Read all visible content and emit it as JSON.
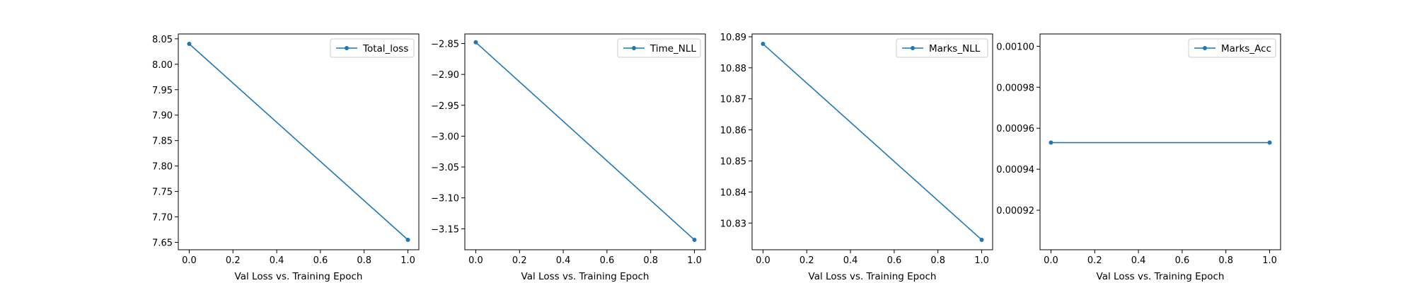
{
  "chart_data": [
    {
      "type": "line",
      "xlabel": "Val Loss vs. Training Epoch",
      "ylabel": "",
      "xlim": [
        -0.05,
        1.05
      ],
      "ylim": [
        7.6355,
        8.0595
      ],
      "xticks": [
        0.0,
        0.2,
        0.4,
        0.6,
        0.8,
        1.0
      ],
      "xtick_labels": [
        "0.0",
        "0.2",
        "0.4",
        "0.6",
        "0.8",
        "1.0"
      ],
      "yticks": [
        7.65,
        7.7,
        7.75,
        7.8,
        7.85,
        7.9,
        7.95,
        8.0,
        8.05
      ],
      "ytick_labels": [
        "7.65",
        "7.70",
        "7.75",
        "7.80",
        "7.85",
        "7.90",
        "7.95",
        "8.00",
        "8.05"
      ],
      "series": [
        {
          "name": "Total_loss",
          "x": [
            0,
            1
          ],
          "y": [
            8.04,
            7.655
          ],
          "color": "#1f77b4",
          "marker": "circle"
        }
      ],
      "legend": "upper right",
      "grid": false
    },
    {
      "type": "line",
      "xlabel": "Val Loss vs. Training Epoch",
      "ylabel": "",
      "xlim": [
        -0.05,
        1.05
      ],
      "ylim": [
        -3.184,
        -2.8345
      ],
      "xticks": [
        0.0,
        0.2,
        0.4,
        0.6,
        0.8,
        1.0
      ],
      "xtick_labels": [
        "0.0",
        "0.2",
        "0.4",
        "0.6",
        "0.8",
        "1.0"
      ],
      "yticks": [
        -3.15,
        -3.1,
        -3.05,
        -3.0,
        -2.95,
        -2.9,
        -2.85
      ],
      "ytick_labels": [
        "−3.15",
        "−3.10",
        "−3.05",
        "−3.00",
        "−2.95",
        "−2.90",
        "−2.85"
      ],
      "series": [
        {
          "name": "Time_NLL",
          "x": [
            0,
            1
          ],
          "y": [
            -2.848,
            -3.168
          ],
          "color": "#1f77b4",
          "marker": "circle"
        }
      ],
      "legend": "upper right",
      "grid": false
    },
    {
      "type": "line",
      "xlabel": "Val Loss vs. Training Epoch",
      "ylabel": "",
      "xlim": [
        -0.05,
        1.05
      ],
      "ylim": [
        10.8214,
        10.8909
      ],
      "xticks": [
        0.0,
        0.2,
        0.4,
        0.6,
        0.8,
        1.0
      ],
      "xtick_labels": [
        "0.0",
        "0.2",
        "0.4",
        "0.6",
        "0.8",
        "1.0"
      ],
      "yticks": [
        10.83,
        10.84,
        10.85,
        10.86,
        10.87,
        10.88,
        10.89
      ],
      "ytick_labels": [
        "10.83",
        "10.84",
        "10.85",
        "10.86",
        "10.87",
        "10.88",
        "10.89"
      ],
      "series": [
        {
          "name": "Marks_NLL",
          "x": [
            0,
            1
          ],
          "y": [
            10.8877,
            10.8246
          ],
          "color": "#1f77b4",
          "marker": "circle"
        }
      ],
      "legend": "upper right",
      "grid": false
    },
    {
      "type": "line",
      "xlabel": "Val Loss vs. Training Epoch",
      "ylabel": "",
      "xlim": [
        -0.05,
        1.05
      ],
      "ylim": [
        0.0009007,
        0.001006
      ],
      "xticks": [
        0.0,
        0.2,
        0.4,
        0.6,
        0.8,
        1.0
      ],
      "xtick_labels": [
        "0.0",
        "0.2",
        "0.4",
        "0.6",
        "0.8",
        "1.0"
      ],
      "yticks": [
        0.00092,
        0.00094,
        0.00096,
        0.00098,
        0.001
      ],
      "ytick_labels": [
        "0.00092",
        "0.00094",
        "0.00096",
        "0.00098",
        "0.00100"
      ],
      "series": [
        {
          "name": "Marks_Acc",
          "x": [
            0,
            1
          ],
          "y": [
            0.000953,
            0.000953
          ],
          "color": "#1f77b4",
          "marker": "circle"
        }
      ],
      "legend": "upper right",
      "grid": false
    }
  ]
}
